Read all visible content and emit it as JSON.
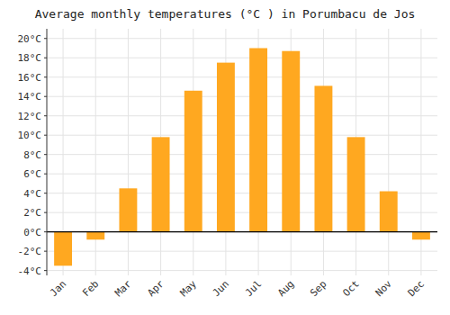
{
  "chart_data": {
    "type": "bar",
    "title": "Average monthly temperatures (°C ) in Porumbacu de Jos",
    "categories": [
      "Jan",
      "Feb",
      "Mar",
      "Apr",
      "May",
      "Jun",
      "Jul",
      "Aug",
      "Sep",
      "Oct",
      "Nov",
      "Dec"
    ],
    "values": [
      -3.5,
      -0.8,
      4.5,
      9.8,
      14.6,
      17.5,
      19.0,
      18.7,
      15.1,
      9.8,
      4.2,
      -0.8
    ],
    "color": "#FFA820",
    "ylim": [
      -4.5,
      21
    ],
    "yticks": [
      {
        "value": -4,
        "label": "-4°C"
      },
      {
        "value": -2,
        "label": "-2°C"
      },
      {
        "value": 0,
        "label": "0°C"
      },
      {
        "value": 2,
        "label": "2°C"
      },
      {
        "value": 4,
        "label": "4°C"
      },
      {
        "value": 6,
        "label": "6°C"
      },
      {
        "value": 8,
        "label": "8°C"
      },
      {
        "value": 10,
        "label": "10°C"
      },
      {
        "value": 12,
        "label": "12°C"
      },
      {
        "value": 14,
        "label": "14°C"
      },
      {
        "value": 16,
        "label": "16°C"
      },
      {
        "value": 18,
        "label": "18°C"
      },
      {
        "value": 20,
        "label": "20°C"
      }
    ],
    "grid": true
  }
}
